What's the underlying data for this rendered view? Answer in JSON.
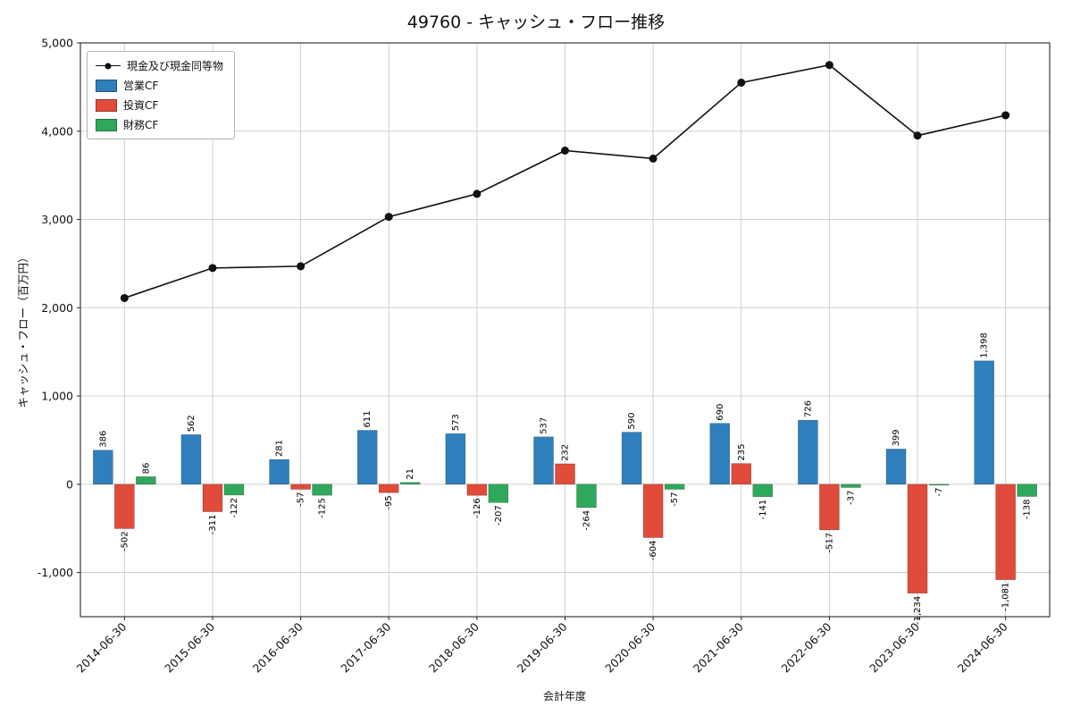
{
  "chart_data": {
    "type": "bar",
    "title": "49760 - キャッシュ・フロー推移",
    "xlabel": "会計年度",
    "ylabel": "キャッシュ・フロー（百万円）",
    "categories": [
      "2014-06-30",
      "2015-06-30",
      "2016-06-30",
      "2017-06-30",
      "2018-06-30",
      "2019-06-30",
      "2020-06-30",
      "2021-06-30",
      "2022-06-30",
      "2023-06-30",
      "2024-06-30"
    ],
    "series": [
      {
        "name": "現金及び現金同等物",
        "type": "line",
        "color": "#111111",
        "values": [
          2110,
          2450,
          2470,
          3030,
          3290,
          3780,
          3690,
          4550,
          4750,
          3950,
          4180
        ]
      },
      {
        "name": "営業CF",
        "type": "bar",
        "color": "#2f7fbc",
        "values": [
          386,
          562,
          281,
          611,
          573,
          537,
          590,
          690,
          726,
          399,
          1398
        ]
      },
      {
        "name": "投資CF",
        "type": "bar",
        "color": "#e04b3b",
        "values": [
          -502,
          -311,
          -57,
          -95,
          -126,
          232,
          -604,
          235,
          -517,
          -1234,
          -1081
        ]
      },
      {
        "name": "財務CF",
        "type": "bar",
        "color": "#2fa85b",
        "values": [
          86,
          -122,
          -125,
          21,
          -207,
          -264,
          -57,
          -141,
          -37,
          -7,
          -138
        ]
      }
    ],
    "ylim": [
      -1500,
      5000
    ],
    "yticks": [
      -1000,
      0,
      1000,
      2000,
      3000,
      4000,
      5000
    ],
    "grid": true,
    "legend_position": "upper left",
    "grid_color": "#cccccc",
    "axis_color": "#262626"
  }
}
